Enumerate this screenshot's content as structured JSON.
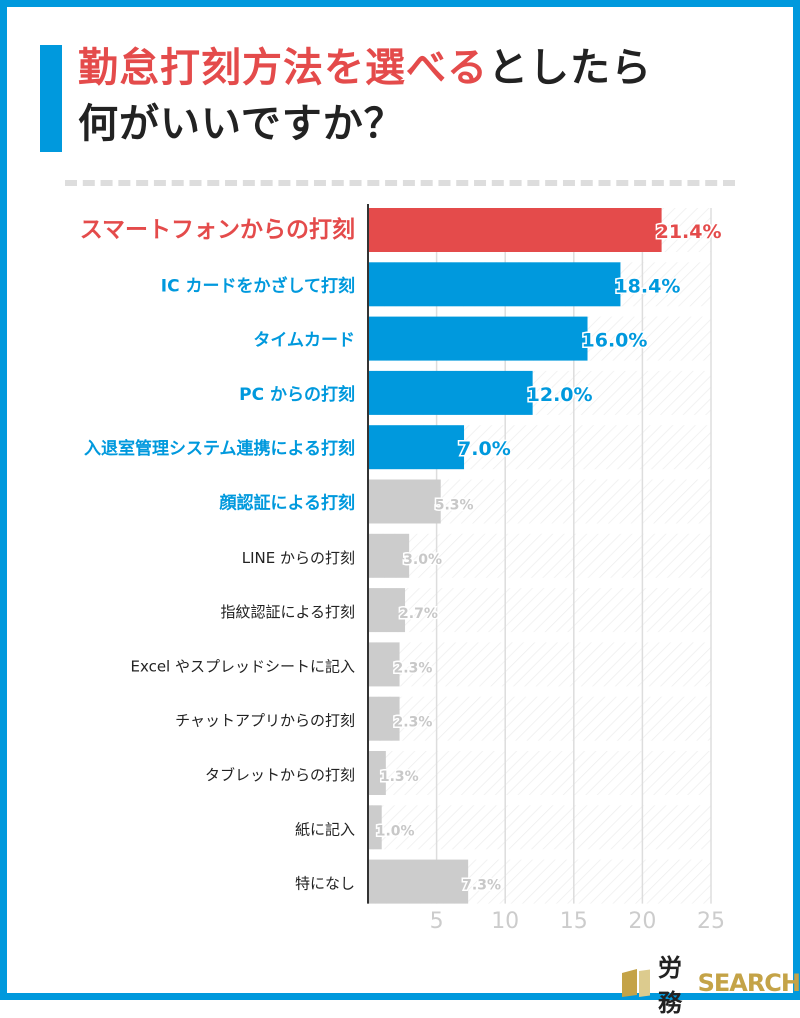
{
  "title": {
    "highlight": "勤怠打刻方法を選べる",
    "rest": "としたら",
    "line2": "何がいいですか？"
  },
  "brand": {
    "kanji": "労務",
    "latin": "SEARCH"
  },
  "colors": {
    "top": "#e44b4b",
    "highlight": "#0099dd",
    "other": "#cccccc",
    "border": "#0099dd"
  },
  "chart_data": {
    "type": "bar",
    "orientation": "horizontal",
    "title": "",
    "xlabel": "",
    "ylabel": "",
    "xlim": [
      0,
      25
    ],
    "xticks": [
      5,
      10,
      15,
      20,
      25
    ],
    "grid": true,
    "categories": [
      "スマートフォンからの打刻",
      "IC カードをかざして打刻",
      "タイムカード",
      "PC からの打刻",
      "入退室管理システム連携による打刻",
      "顔認証による打刻",
      "LINE からの打刻",
      "指紋認証による打刻",
      "Excel やスプレッドシートに記入",
      "チャットアプリからの打刻",
      "タブレットからの打刻",
      "紙に記入",
      "特になし"
    ],
    "values": [
      21.4,
      18.4,
      16.0,
      12.0,
      7.0,
      5.3,
      3.0,
      2.7,
      2.3,
      2.3,
      1.3,
      1.0,
      7.3
    ],
    "labels": [
      "21.4%",
      "18.4%",
      "16.0%",
      "12.0%",
      "7.0%",
      "5.3%",
      "3.0%",
      "2.7%",
      "2.3%",
      "2.3%",
      "1.3%",
      "1.0%",
      "7.3%"
    ],
    "bar_groups": [
      "top",
      "highlight",
      "highlight",
      "highlight",
      "highlight",
      "other",
      "other",
      "other",
      "other",
      "other",
      "other",
      "other",
      "other"
    ],
    "label_groups": [
      "top",
      "highlight",
      "highlight",
      "highlight",
      "highlight",
      "highlight",
      "plain",
      "plain",
      "plain",
      "plain",
      "plain",
      "plain",
      "plain"
    ]
  }
}
